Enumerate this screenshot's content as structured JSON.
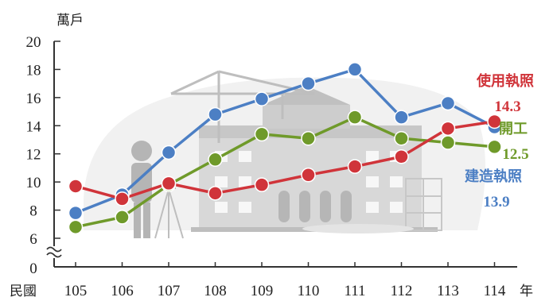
{
  "chart_data": {
    "type": "line",
    "title": "",
    "y_unit": "萬戶",
    "x_prefix": "民國",
    "x_suffix": "年",
    "categories": [
      "105",
      "106",
      "107",
      "108",
      "109",
      "110",
      "111",
      "112",
      "113",
      "114"
    ],
    "ylim": [
      6,
      20
    ],
    "y_ticks": [
      "0",
      "6",
      "8",
      "10",
      "12",
      "14",
      "16",
      "18",
      "20"
    ],
    "axis_break": true,
    "grid": false,
    "series": [
      {
        "name": "使用執照",
        "color": "#d0343a",
        "label_value": "14.3",
        "values": [
          9.7,
          8.8,
          9.9,
          9.2,
          9.8,
          10.5,
          11.1,
          11.8,
          13.8,
          14.3
        ]
      },
      {
        "name": "開工",
        "color": "#6f9a2a",
        "label_value": "12.5",
        "values": [
          6.8,
          7.5,
          9.8,
          11.6,
          13.4,
          13.1,
          14.6,
          13.1,
          12.8,
          12.5
        ]
      },
      {
        "name": "建造執照",
        "color": "#4c7fc4",
        "label_value": "13.9",
        "values": [
          7.8,
          9.1,
          12.1,
          14.8,
          15.9,
          17.0,
          18.0,
          14.6,
          15.6,
          13.9
        ]
      }
    ]
  }
}
